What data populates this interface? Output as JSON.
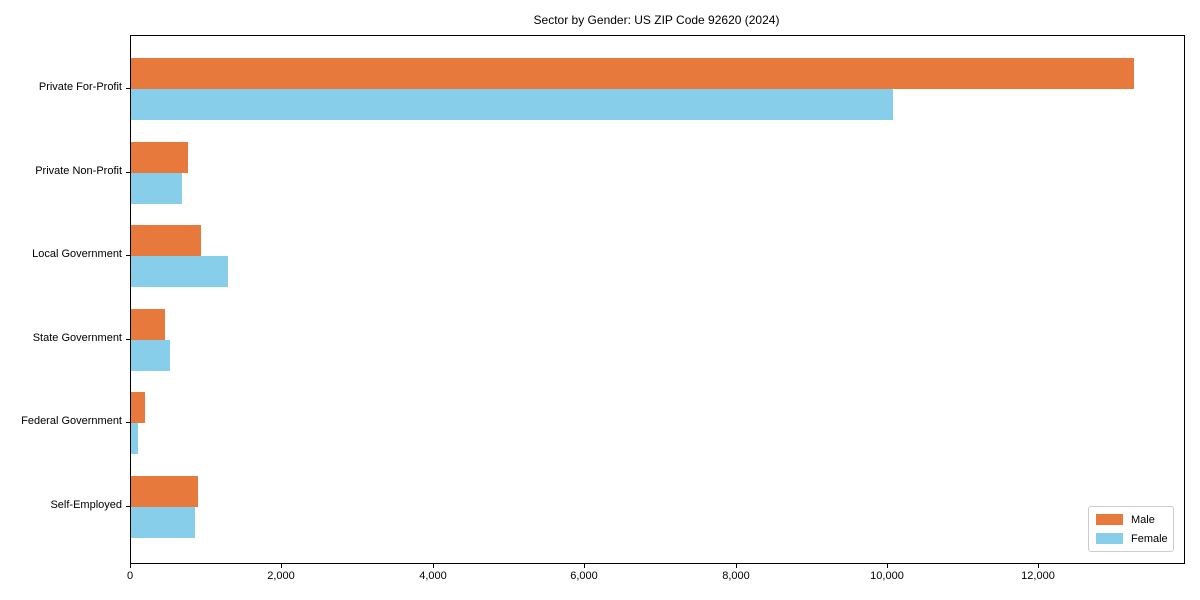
{
  "chart_data": {
    "type": "bar",
    "orientation": "horizontal",
    "title": "Sector by Gender: US ZIP Code 92620 (2024)",
    "categories": [
      "Private For-Profit",
      "Private Non-Profit",
      "Local Government",
      "State Government",
      "Federal Government",
      "Self-Employed"
    ],
    "series": [
      {
        "name": "Male",
        "color": "#e8793d",
        "values": [
          13250,
          750,
          930,
          450,
          180,
          880
        ]
      },
      {
        "name": "Female",
        "color": "#87ceeb",
        "values": [
          10070,
          670,
          1280,
          520,
          90,
          850
        ]
      }
    ],
    "xlabel": "",
    "ylabel": "",
    "xlim": [
      0,
      13912
    ],
    "xticks": {
      "values": [
        0,
        2000,
        4000,
        6000,
        8000,
        10000,
        12000
      ],
      "labels": [
        "0",
        "2,000",
        "4,000",
        "6,000",
        "8,000",
        "10,000",
        "12,000"
      ]
    },
    "legend_position": "lower-right",
    "grid": false,
    "background_color": "#ffffff",
    "axis_color": "#000000"
  }
}
